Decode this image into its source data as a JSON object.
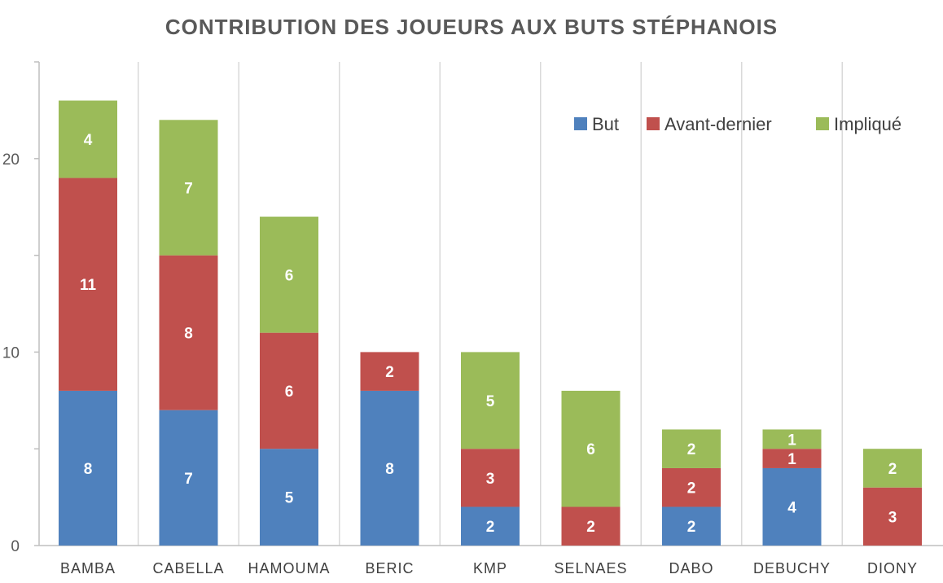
{
  "chart_data": {
    "type": "bar",
    "stacked": true,
    "title": "CONTRIBUTION DES JOUEURS AUX BUTS STÉPHANOIS",
    "xlabel": "",
    "ylabel": "",
    "categories": [
      "BAMBA",
      "CABELLA",
      "HAMOUMA",
      "BERIC",
      "KMP",
      "SELNAES",
      "DABO",
      "DEBUCHY",
      "DIONY"
    ],
    "series": [
      {
        "name": "But",
        "color": "#4f81bd",
        "values": [
          8,
          7,
          5,
          8,
          2,
          0,
          2,
          4,
          0
        ]
      },
      {
        "name": "Avant-dernier",
        "color": "#c0504d",
        "values": [
          11,
          8,
          6,
          2,
          3,
          2,
          2,
          1,
          3
        ]
      },
      {
        "name": "Impliqué",
        "color": "#9bbb59",
        "values": [
          4,
          7,
          6,
          0,
          5,
          6,
          2,
          1,
          2
        ]
      }
    ],
    "ylim": [
      0,
      25
    ],
    "yticks": [
      0,
      10,
      20
    ],
    "grid": true,
    "legend": "top-right"
  }
}
